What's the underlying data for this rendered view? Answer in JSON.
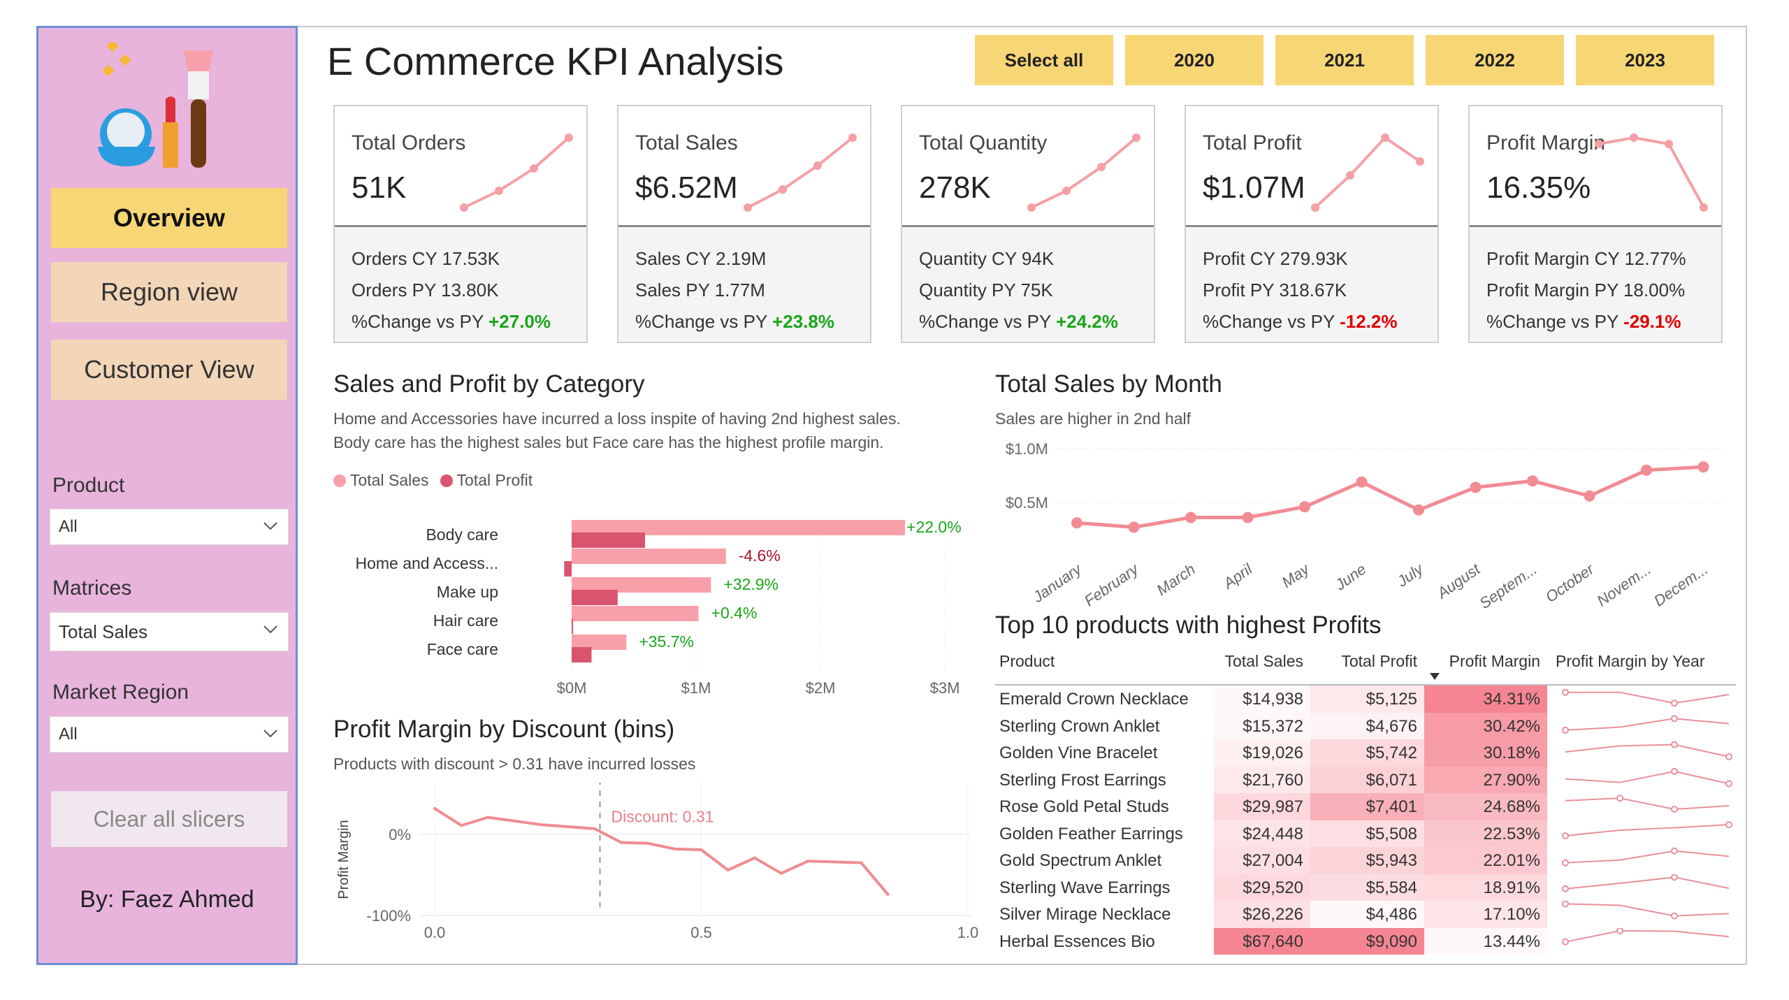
{
  "sidebar": {
    "nav": [
      {
        "label": "Overview",
        "active": true
      },
      {
        "label": "Region view",
        "active": false
      },
      {
        "label": "Customer View",
        "active": false
      }
    ],
    "slicers": [
      {
        "label": "Product",
        "value": "All"
      },
      {
        "label": "Matrices",
        "value": "Total Sales"
      },
      {
        "label": "Market Region",
        "value": "All"
      }
    ],
    "clear_label": "Clear all slicers",
    "author": "By: Faez Ahmed"
  },
  "header": {
    "title": "E Commerce KPI Analysis",
    "year_buttons": [
      "Select all",
      "2020",
      "2021",
      "2022",
      "2023"
    ]
  },
  "colors": {
    "accent_yellow": "#f7d675",
    "sidebar": "#e8b4dc",
    "sales": "#f8a0aa",
    "profit": "#d9546e",
    "line": "#f28b93",
    "positive": "#1aa51a",
    "negative": "#e00000"
  },
  "kpis": [
    {
      "title": "Total Orders",
      "value": "51K",
      "cy": "Orders CY 17.53K",
      "py": "Orders PY 13.80K",
      "change_label": "%Change vs PY",
      "change": "+27.0%",
      "positive": true,
      "trend": [
        0,
        0.24,
        0.56,
        1
      ]
    },
    {
      "title": "Total Sales",
      "value": "$6.52M",
      "cy": "Sales CY 2.19M",
      "py": "Sales PY 1.77M",
      "change_label": "%Change vs PY",
      "change": "+23.8%",
      "positive": true,
      "trend": [
        0,
        0.26,
        0.6,
        1
      ]
    },
    {
      "title": "Total Quantity",
      "value": "278K",
      "cy": "Quantity CY 94K",
      "py": "Quantity PY 75K",
      "change_label": "%Change vs PY",
      "change": "+24.2%",
      "positive": true,
      "trend": [
        0,
        0.24,
        0.58,
        1
      ]
    },
    {
      "title": "Total Profit",
      "value": "$1.07M",
      "cy": "Profit CY 279.93K",
      "py": "Profit PY 318.67K",
      "change_label": "%Change vs PY",
      "change": "-12.2%",
      "positive": false,
      "trend": [
        0,
        0.46,
        1,
        0.66
      ]
    },
    {
      "title": "Profit Margin",
      "value": "16.35%",
      "cy": "Profit Margin CY 12.77%",
      "py": "Profit Margin PY 18.00%",
      "change_label": "%Change vs PY",
      "change": "-29.1%",
      "positive": false,
      "trend": [
        0.91,
        1,
        0.91,
        0
      ]
    }
  ],
  "category_section": {
    "title": "Sales and Profit by Category",
    "subtitle1": "Home and Accessories have incurred a loss inspite of having 2nd highest sales.",
    "subtitle2": "Body care has the highest sales but Face care has the highest profile margin."
  },
  "month_section": {
    "title": "Total Sales by Month",
    "subtitle": "Sales are higher in 2nd half"
  },
  "discount_section": {
    "title": "Profit Margin by Discount (bins)",
    "subtitle": "Products with discount > 0.31 have incurred losses"
  },
  "chart_data": [
    {
      "type": "bar",
      "orientation": "horizontal",
      "categories": [
        "Body care",
        "Home and Access...",
        "Make up",
        "Hair care",
        "Face care"
      ],
      "series": [
        {
          "name": "Total Sales",
          "values": [
            2.68,
            1.24,
            1.12,
            1.02,
            0.44
          ]
        },
        {
          "name": "Total Profit",
          "values": [
            0.59,
            -0.06,
            0.37,
            0.005,
            0.16
          ]
        }
      ],
      "data_labels": [
        "+22.0%",
        "-4.6%",
        "+32.9%",
        "+0.4%",
        "+35.7%"
      ],
      "xticks": [
        "$0M",
        "$1M",
        "$2M",
        "$3M"
      ],
      "xlim": [
        0,
        3
      ],
      "unit": "$M",
      "legend": "top-left",
      "grid": true
    },
    {
      "type": "line",
      "categories": [
        "January",
        "February",
        "March",
        "April",
        "May",
        "June",
        "July",
        "August",
        "Septem...",
        "October",
        "Novem...",
        "Decem..."
      ],
      "values": [
        0.31,
        0.27,
        0.36,
        0.36,
        0.46,
        0.69,
        0.43,
        0.64,
        0.7,
        0.56,
        0.8,
        0.83
      ],
      "yticks": [
        "$1.0M",
        "$0.5M"
      ],
      "ylim": [
        0,
        1.0
      ],
      "unit": "$M",
      "grid": true
    },
    {
      "type": "line",
      "ylabel": "Profit Margin",
      "x": [
        0,
        0.05,
        0.1,
        0.2,
        0.3,
        0.35,
        0.4,
        0.45,
        0.5,
        0.55,
        0.6,
        0.65,
        0.7,
        0.8,
        0.85
      ],
      "values": [
        32,
        11,
        21,
        12,
        7,
        -10,
        -11,
        -18,
        -19,
        -44,
        -29,
        -48,
        -33,
        -35,
        -74
      ],
      "xticks": [
        "0.0",
        "0.5",
        "1.0"
      ],
      "yticks": [
        "0%",
        "-100%"
      ],
      "xlim": [
        0,
        1
      ],
      "ylim": [
        -100,
        40
      ],
      "reference_line": {
        "x": 0.31,
        "label": "Discount: 0.31"
      }
    }
  ],
  "table": {
    "title": "Top 10 products with highest Profits",
    "columns": [
      "Product",
      "Total Sales",
      "Total Profit",
      "Profit Margin",
      "Profit Margin by Year"
    ],
    "sorted_column": "Profit Margin",
    "rows": [
      {
        "product": "Emerald Crown Necklace",
        "sales": "$14,938",
        "profit": "$5,125",
        "margin": "34.31%",
        "trend": [
          0.73,
          0.73,
          0.3,
          0.64
        ]
      },
      {
        "product": "Sterling Crown Anklet",
        "sales": "$15,372",
        "profit": "$4,676",
        "margin": "30.42%",
        "trend": [
          0.31,
          0.43,
          0.77,
          0.57
        ]
      },
      {
        "product": "Golden Vine Bracelet",
        "sales": "$19,026",
        "profit": "$5,742",
        "margin": "30.18%",
        "trend": [
          0.5,
          0.74,
          0.79,
          0.31
        ]
      },
      {
        "product": "Sterling Frost Earrings",
        "sales": "$21,760",
        "profit": "$6,071",
        "margin": "27.90%",
        "trend": [
          0.51,
          0.37,
          0.81,
          0.32
        ]
      },
      {
        "product": "Rose Gold Petal Studs",
        "sales": "$29,987",
        "profit": "$7,401",
        "margin": "24.68%",
        "trend": [
          0.7,
          0.8,
          0.36,
          0.5
        ]
      },
      {
        "product": "Golden Feather Earrings",
        "sales": "$24,448",
        "profit": "$5,508",
        "margin": "22.53%",
        "trend": [
          0.39,
          0.61,
          0.71,
          0.83
        ]
      },
      {
        "product": "Gold Spectrum Anklet",
        "sales": "$27,004",
        "profit": "$5,943",
        "margin": "22.01%",
        "trend": [
          0.37,
          0.48,
          0.84,
          0.63
        ]
      },
      {
        "product": "Sterling Wave Earrings",
        "sales": "$29,520",
        "profit": "$5,584",
        "margin": "18.91%",
        "trend": [
          0.42,
          0.64,
          0.88,
          0.44
        ]
      },
      {
        "product": "Silver Mirage Necklace",
        "sales": "$26,226",
        "profit": "$4,486",
        "margin": "17.10%",
        "trend": [
          0.88,
          0.82,
          0.4,
          0.49
        ]
      },
      {
        "product": "Herbal Essences Bio",
        "sales": "$67,640",
        "profit": "$9,090",
        "margin": "13.44%",
        "trend": [
          0.45,
          0.89,
          0.87,
          0.66
        ]
      }
    ]
  }
}
